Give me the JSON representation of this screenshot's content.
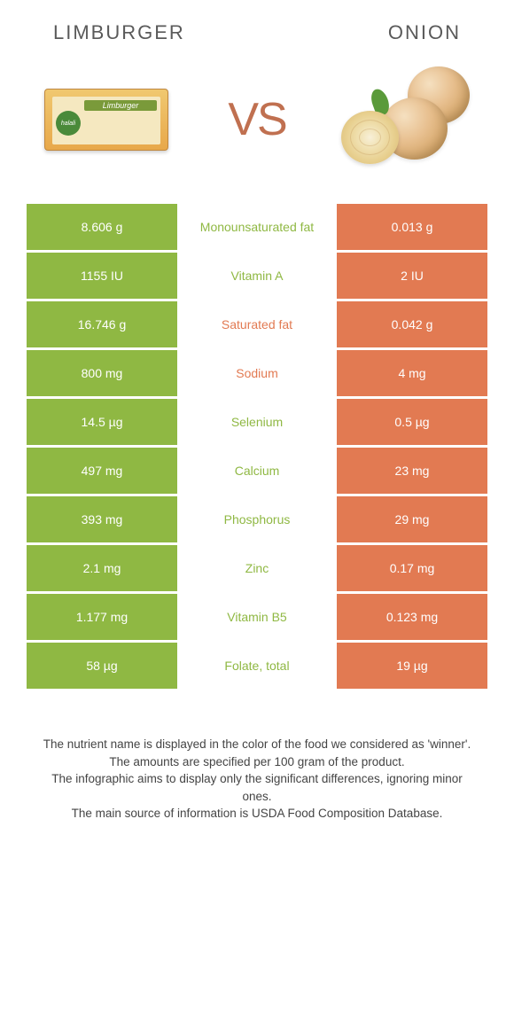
{
  "header": {
    "left_title": "Limburger",
    "right_title": "Onion",
    "vs_text": "VS",
    "cheese_brand": "halali",
    "cheese_name": "Limburger"
  },
  "colors": {
    "green": "#8fb843",
    "orange": "#e27a52",
    "text_gray": "#5a5a5a"
  },
  "rows": [
    {
      "left": "8.606 g",
      "mid": "Monounsaturated fat",
      "right": "0.013 g",
      "winner": "green"
    },
    {
      "left": "1155 IU",
      "mid": "Vitamin A",
      "right": "2 IU",
      "winner": "green"
    },
    {
      "left": "16.746 g",
      "mid": "Saturated fat",
      "right": "0.042 g",
      "winner": "orange"
    },
    {
      "left": "800 mg",
      "mid": "Sodium",
      "right": "4 mg",
      "winner": "orange"
    },
    {
      "left": "14.5 µg",
      "mid": "Selenium",
      "right": "0.5 µg",
      "winner": "green"
    },
    {
      "left": "497 mg",
      "mid": "Calcium",
      "right": "23 mg",
      "winner": "green"
    },
    {
      "left": "393 mg",
      "mid": "Phosphorus",
      "right": "29 mg",
      "winner": "green"
    },
    {
      "left": "2.1 mg",
      "mid": "Zinc",
      "right": "0.17 mg",
      "winner": "green"
    },
    {
      "left": "1.177 mg",
      "mid": "Vitamin B5",
      "right": "0.123 mg",
      "winner": "green"
    },
    {
      "left": "58 µg",
      "mid": "Folate, total",
      "right": "19 µg",
      "winner": "green"
    }
  ],
  "footer": {
    "line1": "The nutrient name is displayed in the color of the food we considered as 'winner'.",
    "line2": "The amounts are specified per 100 gram of the product.",
    "line3": "The infographic aims to display only the significant differences, ignoring minor ones.",
    "line4": "The main source of information is USDA Food Composition Database."
  }
}
